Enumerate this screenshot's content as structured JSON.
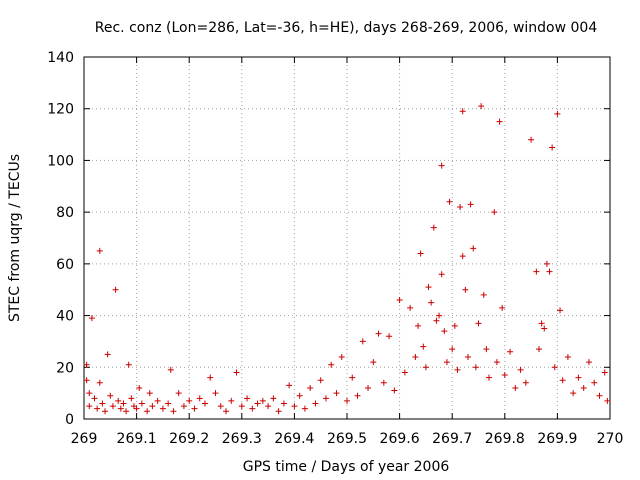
{
  "chart_data": {
    "type": "scatter",
    "title": "Rec. conz (Lon=286, Lat=-36, h=HE), days 268-269, 2006, window 004",
    "xlabel": "GPS time / Days of year 2006",
    "ylabel": "STEC from uqrg / TECUs",
    "xlim": [
      269,
      270
    ],
    "ylim": [
      0,
      140
    ],
    "xticks": [
      269,
      269.1,
      269.2,
      269.3,
      269.4,
      269.5,
      269.6,
      269.7,
      269.8,
      269.9,
      270
    ],
    "xtick_labels": [
      "269",
      "269.1",
      "269.2",
      "269.3",
      "269.4",
      "269.5",
      "269.6",
      "269.7",
      "269.8",
      "269.9",
      "270"
    ],
    "yticks": [
      0,
      20,
      40,
      60,
      80,
      100,
      120,
      140
    ],
    "ytick_labels": [
      "0",
      "20",
      "40",
      "60",
      "80",
      "100",
      "120",
      "140"
    ],
    "grid": true,
    "marker": "+",
    "color": "#cc0000",
    "series": [
      {
        "name": "STEC",
        "points": [
          [
            269.005,
            21
          ],
          [
            269.005,
            15
          ],
          [
            269.01,
            10
          ],
          [
            269.01,
            5
          ],
          [
            269.015,
            39
          ],
          [
            269.02,
            8
          ],
          [
            269.025,
            4
          ],
          [
            269.03,
            65
          ],
          [
            269.03,
            14
          ],
          [
            269.035,
            6
          ],
          [
            269.04,
            3
          ],
          [
            269.045,
            25
          ],
          [
            269.05,
            9
          ],
          [
            269.055,
            5
          ],
          [
            269.06,
            50
          ],
          [
            269.065,
            7
          ],
          [
            269.07,
            4
          ],
          [
            269.075,
            6
          ],
          [
            269.08,
            3
          ],
          [
            269.085,
            21
          ],
          [
            269.09,
            8
          ],
          [
            269.095,
            5
          ],
          [
            269.1,
            4
          ],
          [
            269.105,
            12
          ],
          [
            269.11,
            6
          ],
          [
            269.12,
            3
          ],
          [
            269.125,
            10
          ],
          [
            269.13,
            5
          ],
          [
            269.14,
            7
          ],
          [
            269.15,
            4
          ],
          [
            269.16,
            6
          ],
          [
            269.165,
            19
          ],
          [
            269.17,
            3
          ],
          [
            269.18,
            10
          ],
          [
            269.19,
            5
          ],
          [
            269.2,
            7
          ],
          [
            269.21,
            4
          ],
          [
            269.22,
            8
          ],
          [
            269.23,
            6
          ],
          [
            269.24,
            16
          ],
          [
            269.25,
            10
          ],
          [
            269.26,
            5
          ],
          [
            269.27,
            3
          ],
          [
            269.28,
            7
          ],
          [
            269.29,
            18
          ],
          [
            269.3,
            5
          ],
          [
            269.31,
            8
          ],
          [
            269.32,
            4
          ],
          [
            269.33,
            6
          ],
          [
            269.34,
            7
          ],
          [
            269.35,
            5
          ],
          [
            269.36,
            8
          ],
          [
            269.37,
            3
          ],
          [
            269.38,
            6
          ],
          [
            269.39,
            13
          ],
          [
            269.4,
            5
          ],
          [
            269.41,
            9
          ],
          [
            269.42,
            4
          ],
          [
            269.43,
            12
          ],
          [
            269.44,
            6
          ],
          [
            269.45,
            15
          ],
          [
            269.46,
            8
          ],
          [
            269.47,
            21
          ],
          [
            269.48,
            10
          ],
          [
            269.49,
            24
          ],
          [
            269.5,
            7
          ],
          [
            269.51,
            16
          ],
          [
            269.52,
            9
          ],
          [
            269.53,
            30
          ],
          [
            269.54,
            12
          ],
          [
            269.55,
            22
          ],
          [
            269.56,
            33
          ],
          [
            269.57,
            14
          ],
          [
            269.58,
            32
          ],
          [
            269.59,
            11
          ],
          [
            269.6,
            46
          ],
          [
            269.61,
            18
          ],
          [
            269.62,
            43
          ],
          [
            269.63,
            24
          ],
          [
            269.635,
            36
          ],
          [
            269.64,
            64
          ],
          [
            269.645,
            28
          ],
          [
            269.65,
            20
          ],
          [
            269.655,
            51
          ],
          [
            269.66,
            45
          ],
          [
            269.665,
            74
          ],
          [
            269.67,
            38
          ],
          [
            269.675,
            40
          ],
          [
            269.68,
            56
          ],
          [
            269.68,
            98
          ],
          [
            269.685,
            34
          ],
          [
            269.69,
            22
          ],
          [
            269.695,
            84
          ],
          [
            269.7,
            27
          ],
          [
            269.705,
            36
          ],
          [
            269.71,
            19
          ],
          [
            269.715,
            82
          ],
          [
            269.72,
            63
          ],
          [
            269.72,
            119
          ],
          [
            269.725,
            50
          ],
          [
            269.73,
            24
          ],
          [
            269.735,
            83
          ],
          [
            269.74,
            66
          ],
          [
            269.745,
            20
          ],
          [
            269.75,
            37
          ],
          [
            269.755,
            121
          ],
          [
            269.76,
            48
          ],
          [
            269.765,
            27
          ],
          [
            269.77,
            16
          ],
          [
            269.78,
            80
          ],
          [
            269.785,
            22
          ],
          [
            269.79,
            115
          ],
          [
            269.795,
            43
          ],
          [
            269.8,
            17
          ],
          [
            269.81,
            26
          ],
          [
            269.82,
            12
          ],
          [
            269.83,
            19
          ],
          [
            269.84,
            14
          ],
          [
            269.85,
            108
          ],
          [
            269.86,
            57
          ],
          [
            269.865,
            27
          ],
          [
            269.87,
            37
          ],
          [
            269.875,
            35
          ],
          [
            269.88,
            60
          ],
          [
            269.885,
            57
          ],
          [
            269.89,
            105
          ],
          [
            269.895,
            20
          ],
          [
            269.9,
            118
          ],
          [
            269.905,
            42
          ],
          [
            269.91,
            15
          ],
          [
            269.92,
            24
          ],
          [
            269.93,
            10
          ],
          [
            269.94,
            16
          ],
          [
            269.95,
            12
          ],
          [
            269.96,
            22
          ],
          [
            269.97,
            14
          ],
          [
            269.98,
            9
          ],
          [
            269.99,
            18
          ],
          [
            269.995,
            7
          ]
        ]
      }
    ]
  }
}
